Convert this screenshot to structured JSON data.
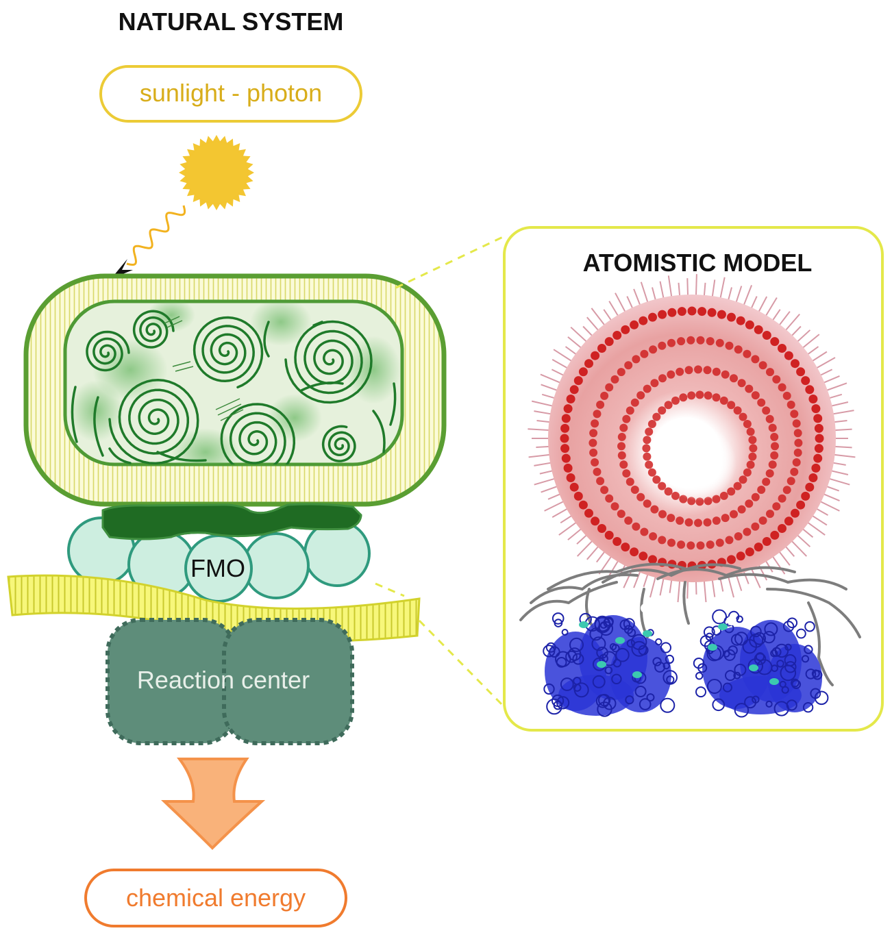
{
  "natural_system": {
    "title": "NATURAL SYSTEM",
    "input_label": "sunlight - photon",
    "fmo_label": "FMO",
    "reaction_center_label": "Reaction center",
    "output_label": "chemical energy"
  },
  "atomistic_model": {
    "title": "ATOMISTIC MODEL"
  },
  "colors": {
    "sun": "#f2c12e",
    "sunlight_text": "#d8ad1a",
    "chlorosome_outline": "#5a9e32",
    "chlorosome_fill": "#e3efd6",
    "spiral": "#1f7a2a",
    "baseplate": "#1f6b23",
    "fmo_fill": "#cdeee0",
    "fmo_stroke": "#2f9a7e",
    "membrane": "#e6e64a",
    "reaction_center": "#5e8d7a",
    "arrow": "#f7a25c",
    "energy_text": "#f07b2e",
    "panel_border": "#e4e84a",
    "model_ring": "#cf2222",
    "model_protein": "#2a35d6",
    "model_linker": "#8a8a8a",
    "model_highlight": "#3cc9b0"
  }
}
